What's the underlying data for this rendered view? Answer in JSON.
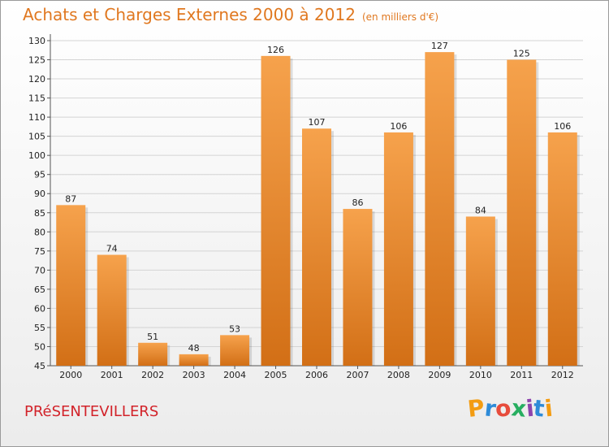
{
  "title": "Achats et Charges Externes 2000 à 2012",
  "subtitle": "(en milliers d'€)",
  "location": "PRéSENTEVILLERS",
  "logo": {
    "text": "Proxiti",
    "letters": [
      {
        "ch": "P",
        "color": "#f39c12"
      },
      {
        "ch": "r",
        "color": "#2e8bd8"
      },
      {
        "ch": "o",
        "color": "#e74c3c"
      },
      {
        "ch": "x",
        "color": "#27ae60"
      },
      {
        "ch": "i",
        "color": "#8e44ad"
      },
      {
        "ch": "t",
        "color": "#2e8bd8"
      },
      {
        "ch": "i",
        "color": "#f39c12"
      }
    ]
  },
  "chart_data": {
    "type": "bar",
    "categories": [
      "2000",
      "2001",
      "2002",
      "2003",
      "2004",
      "2005",
      "2006",
      "2007",
      "2008",
      "2009",
      "2010",
      "2011",
      "2012"
    ],
    "values": [
      87,
      74,
      51,
      48,
      53,
      126,
      107,
      86,
      106,
      127,
      84,
      125,
      106
    ],
    "ylim": [
      45,
      130
    ],
    "yticks": [
      45,
      50,
      55,
      60,
      65,
      70,
      75,
      80,
      85,
      90,
      95,
      100,
      105,
      110,
      115,
      120,
      125,
      130
    ],
    "grid": true,
    "bar_color": "#f0882a",
    "legend": "none"
  }
}
